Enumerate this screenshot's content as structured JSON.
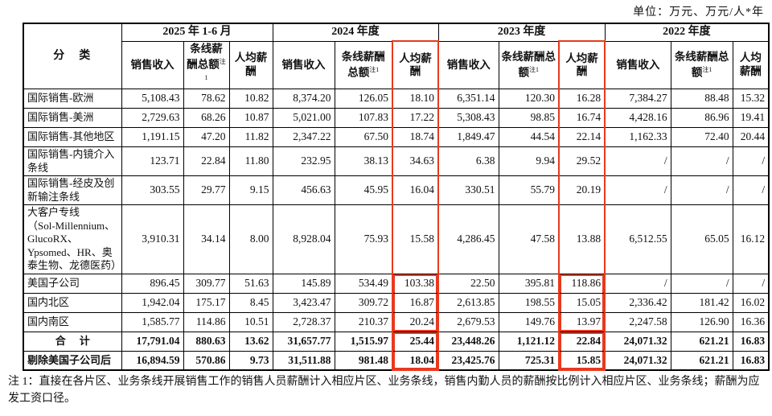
{
  "unit_label": "单位：万元、万元/人*年",
  "accent_color": "#e8391f",
  "table": {
    "corner_header": "分　类",
    "col_groups": [
      {
        "label": "2025 年 1-6 月"
      },
      {
        "label": "2024 年度"
      },
      {
        "label": "2023 年度"
      },
      {
        "label": "2022 年度"
      }
    ],
    "sub_headers": {
      "revenue": "销售收入",
      "salary": "条线薪酬总额",
      "salary_note": "注1",
      "avg": "人均薪酬"
    },
    "highlight_group_indices": [
      1,
      2
    ],
    "highlight_value_indices": [
      5,
      8
    ],
    "inner_boxes": [
      {
        "start": 6,
        "end": 8
      },
      {
        "start": 9,
        "end": 10
      }
    ],
    "rows": [
      {
        "label": "国际销售-欧洲",
        "values": [
          "5,108.43",
          "78.62",
          "10.82",
          "8,374.20",
          "126.05",
          "18.10",
          "6,351.14",
          "120.30",
          "16.28",
          "7,384.27",
          "88.48",
          "15.32"
        ]
      },
      {
        "label": "国际销售-美洲",
        "values": [
          "2,729.63",
          "68.26",
          "10.87",
          "5,021.00",
          "107.83",
          "17.22",
          "5,308.43",
          "98.85",
          "16.74",
          "4,428.16",
          "86.96",
          "19.41"
        ]
      },
      {
        "label": "国际销售-其他地区",
        "values": [
          "1,191.15",
          "47.20",
          "11.82",
          "2,347.22",
          "67.50",
          "18.74",
          "1,849.47",
          "44.54",
          "22.14",
          "1,162.33",
          "72.40",
          "20.44"
        ]
      },
      {
        "label": "国际销售-内镜介入\n条线",
        "values": [
          "123.71",
          "22.84",
          "11.80",
          "232.95",
          "38.13",
          "34.63",
          "6.38",
          "9.94",
          "29.52",
          "/",
          "/",
          "/"
        ]
      },
      {
        "label": "国际销售-经皮及创\n新输注条线",
        "values": [
          "303.55",
          "29.77",
          "9.15",
          "456.63",
          "45.95",
          "16.04",
          "330.51",
          "55.79",
          "20.19",
          "/",
          "/",
          "/"
        ]
      },
      {
        "label": "大客户专线\n（Sol-Millennium、\nGlucoRX、\nYpsomed、HR、奥\n泰生物、龙德医药）",
        "values": [
          "3,910.31",
          "34.14",
          "8.00",
          "8,928.04",
          "75.93",
          "15.58",
          "4,286.45",
          "47.58",
          "13.88",
          "6,512.55",
          "65.05",
          "16.12"
        ]
      },
      {
        "label": "美国子公司",
        "values": [
          "896.45",
          "309.77",
          "51.63",
          "145.89",
          "534.49",
          "103.38",
          "22.50",
          "395.81",
          "118.86",
          "/",
          "/",
          "/"
        ]
      },
      {
        "label": "国内北区",
        "values": [
          "1,942.04",
          "175.17",
          "8.45",
          "3,423.47",
          "309.72",
          "16.87",
          "2,613.85",
          "198.55",
          "15.05",
          "2,336.42",
          "181.42",
          "16.02"
        ]
      },
      {
        "label": "国内南区",
        "values": [
          "1,585.77",
          "114.86",
          "10.51",
          "2,728.37",
          "210.37",
          "20.24",
          "2,679.53",
          "149.76",
          "13.97",
          "2,247.58",
          "126.90",
          "16.36"
        ]
      },
      {
        "label": "合　计",
        "bold": true,
        "align": "center",
        "values": [
          "17,791.04",
          "880.63",
          "13.62",
          "31,657.77",
          "1,515.97",
          "25.44",
          "23,448.26",
          "1,121.12",
          "22.84",
          "24,071.32",
          "621.21",
          "16.83"
        ]
      },
      {
        "label": "剔除美国子公司后",
        "bold": true,
        "values": [
          "16,894.59",
          "570.86",
          "9.73",
          "31,511.88",
          "981.48",
          "18.04",
          "23,425.76",
          "725.31",
          "15.85",
          "24,071.32",
          "621.21",
          "16.83"
        ]
      }
    ]
  },
  "note": "注 1：直接在各片区、业务条线开展销售工作的销售人员薪酬计入相应片区、业务条线，销售内勤人员的薪酬按比例计入相应片区、业务条线；薪酬为应发工资口径。"
}
